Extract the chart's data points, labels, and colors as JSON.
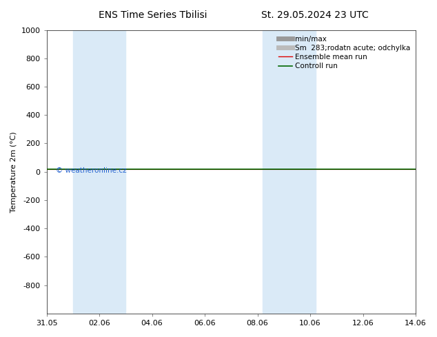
{
  "title_left": "ENS Time Series Tbilisi",
  "title_right": "St. 29.05.2024 23 UTC",
  "ylabel": "Temperature 2m (°C)",
  "watermark": "© weatheronline.cz",
  "ylim_top": -1000,
  "ylim_bottom": 1000,
  "yticks": [
    -800,
    -600,
    -400,
    -200,
    0,
    200,
    400,
    600,
    800,
    1000
  ],
  "xlim": [
    0,
    14
  ],
  "xtick_labels": [
    "31.05",
    "02.06",
    "04.06",
    "06.06",
    "08.06",
    "10.06",
    "12.06",
    "14.06"
  ],
  "xtick_positions": [
    0,
    2,
    4,
    6,
    8,
    10,
    12,
    14
  ],
  "shaded_bands": [
    {
      "x_start": 1.0,
      "x_end": 3.0
    },
    {
      "x_start": 8.2,
      "x_end": 10.2
    }
  ],
  "line_y": 20,
  "ensemble_mean_color": "#dd0000",
  "control_run_color": "#006600",
  "shaded_color": "#daeaf7",
  "background_color": "#ffffff",
  "legend_labels": [
    "min/max",
    "Sm  283;rodatn acute; odchylka",
    "Ensemble mean run",
    "Controll run"
  ],
  "min_max_color": "#999999",
  "std_color": "#bbbbbb",
  "title_fontsize": 10,
  "axis_fontsize": 8,
  "tick_fontsize": 8,
  "legend_fontsize": 7.5
}
